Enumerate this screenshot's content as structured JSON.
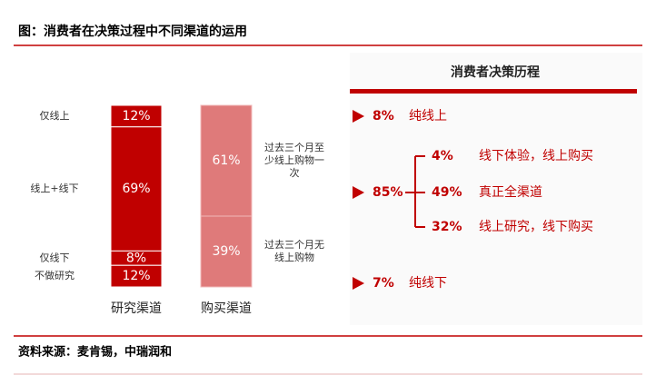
{
  "header": {
    "title": "图：消费者在决策过程中不同渠道的运用"
  },
  "chart_data": {
    "type": "stacked_bar",
    "bars": [
      {
        "name": "研究渠道",
        "color": "#c00000",
        "labels": [
          "仅线上",
          "线上+线下",
          "仅线下",
          "不做研究"
        ],
        "values": [
          12,
          69,
          8,
          12
        ],
        "value_labels": [
          "12%",
          "69%",
          "8%",
          "12%"
        ]
      },
      {
        "name": "购买渠道",
        "color": "#df7a7a",
        "labels": [
          "过去三个月至少线上购物一次",
          "过去三个月无线上购物"
        ],
        "values": [
          61,
          39
        ],
        "value_labels": [
          "61%",
          "39%"
        ]
      }
    ]
  },
  "decision_journey": {
    "title": "消费者决策历程",
    "items": [
      {
        "value": "8%",
        "label": "纯线上"
      },
      {
        "value": "85%",
        "children": [
          {
            "value": "4%",
            "label": "线下体验，线上购买"
          },
          {
            "value": "49%",
            "label": "真正全渠道"
          },
          {
            "value": "32%",
            "label": "线上研究，线下购买"
          }
        ]
      },
      {
        "value": "7%",
        "label": "纯线下"
      }
    ]
  },
  "footer": {
    "source": "资料来源：麦肯锡，中瑞润和"
  }
}
